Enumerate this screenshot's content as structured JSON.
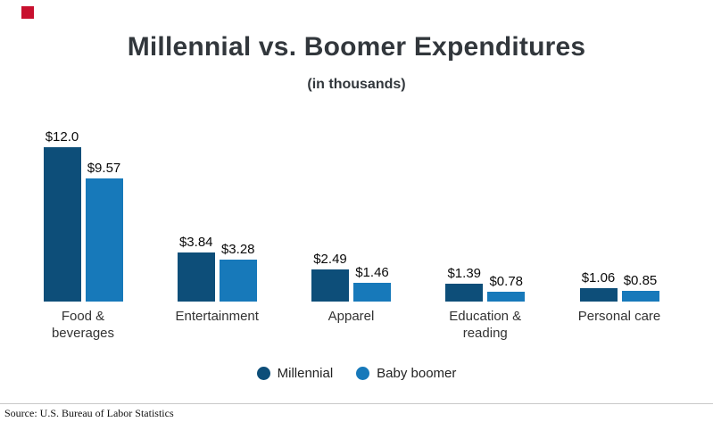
{
  "page": {
    "title": "Millennial vs. Boomer Expenditures",
    "subtitle": "(in thousands)",
    "source": "Source: U.S. Bureau of Labor Statistics"
  },
  "colors": {
    "millennial": "#0d4e79",
    "baby_boomer": "#1779ba",
    "title_text": "#32373c",
    "logo_red": "#c8102e",
    "divider": "#c9c9c9"
  },
  "legend": [
    {
      "label": "Millennial",
      "color": "#0d4e79"
    },
    {
      "label": "Baby boomer",
      "color": "#1779ba"
    }
  ],
  "chart_data": {
    "type": "bar",
    "title": "Millennial vs. Boomer Expenditures",
    "subtitle": "(in thousands)",
    "categories": [
      "Food & beverages",
      "Entertainment",
      "Apparel",
      "Education & reading",
      "Personal care"
    ],
    "series": [
      {
        "name": "Millennial",
        "color": "#0d4e79",
        "values": [
          12.0,
          3.84,
          2.49,
          1.39,
          1.06
        ],
        "labels": [
          "$12.0",
          "$3.84",
          "$2.49",
          "$1.39",
          "$1.06"
        ]
      },
      {
        "name": "Baby boomer",
        "color": "#1779ba",
        "values": [
          9.57,
          3.28,
          1.46,
          0.78,
          0.85
        ],
        "labels": [
          "$9.57",
          "$3.28",
          "$1.46",
          "$0.78",
          "$0.85"
        ]
      }
    ],
    "ylim": [
      0,
      12.0
    ],
    "grid": false,
    "axes_visible": false,
    "value_labels": "above-bars",
    "legend_position": "bottom"
  }
}
